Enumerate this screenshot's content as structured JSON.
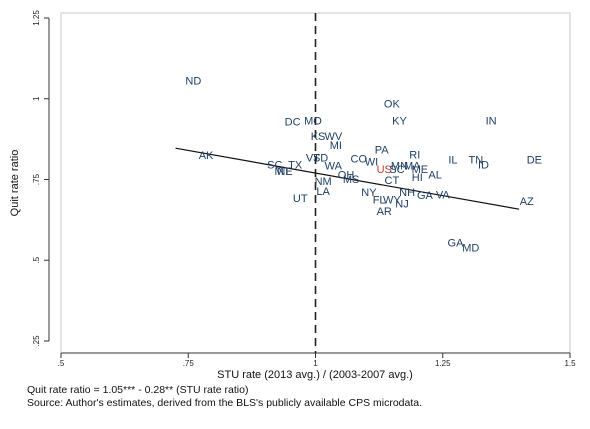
{
  "chart_data": {
    "type": "scatter",
    "xlabel": "STU rate (2013 avg.) / (2003-2007 avg.)",
    "ylabel": "Quit rate ratio",
    "xlim": [
      0.5,
      1.5
    ],
    "ylim": [
      0.25,
      1.25
    ],
    "xticks": [
      {
        "value": 0.5,
        "label": ".5"
      },
      {
        "value": 0.75,
        "label": ".75"
      },
      {
        "value": 1,
        "label": "1"
      },
      {
        "value": 1.25,
        "label": "1.25"
      },
      {
        "value": 1.5,
        "label": "1.5"
      }
    ],
    "yticks": [
      {
        "value": 0.25,
        "label": ".25"
      },
      {
        "value": 0.5,
        "label": ".5"
      },
      {
        "value": 0.75,
        "label": ".75"
      },
      {
        "value": 1,
        "label": "1"
      },
      {
        "value": 1.25,
        "label": "1.25"
      }
    ],
    "reference_line": {
      "x": 1,
      "style": "dashed"
    },
    "fit_line": {
      "intercept": 1.05,
      "slope": -0.28,
      "x_range": [
        0.725,
        1.4
      ]
    },
    "point_color": "#1f3f63",
    "highlight_color": "#c0392b",
    "points": [
      {
        "label": "ND",
        "x": 0.76,
        "y": 1.057
      },
      {
        "label": "OK",
        "x": 1.15,
        "y": 0.985
      },
      {
        "label": "IN",
        "x": 1.345,
        "y": 0.932
      },
      {
        "label": "KY",
        "x": 1.165,
        "y": 0.932
      },
      {
        "label": "DC",
        "x": 0.955,
        "y": 0.929
      },
      {
        "label": "MO",
        "x": 0.995,
        "y": 0.932
      },
      {
        "label": "KS",
        "x": 1.005,
        "y": 0.885
      },
      {
        "label": "WV",
        "x": 1.035,
        "y": 0.885
      },
      {
        "label": "MI",
        "x": 1.04,
        "y": 0.857
      },
      {
        "label": "PA",
        "x": 1.13,
        "y": 0.843
      },
      {
        "label": "AK",
        "x": 0.785,
        "y": 0.826
      },
      {
        "label": "RI",
        "x": 1.195,
        "y": 0.827
      },
      {
        "label": "VT",
        "x": 0.995,
        "y": 0.818
      },
      {
        "label": "SD",
        "x": 1.01,
        "y": 0.818
      },
      {
        "label": "CO",
        "x": 1.085,
        "y": 0.815
      },
      {
        "label": "IL",
        "x": 1.27,
        "y": 0.812
      },
      {
        "label": "TN",
        "x": 1.315,
        "y": 0.812
      },
      {
        "label": "DE",
        "x": 1.43,
        "y": 0.812
      },
      {
        "label": "WI",
        "x": 1.11,
        "y": 0.806
      },
      {
        "label": "ID",
        "x": 1.33,
        "y": 0.797
      },
      {
        "label": "SC",
        "x": 0.92,
        "y": 0.796
      },
      {
        "label": "TX",
        "x": 0.96,
        "y": 0.796
      },
      {
        "label": "WA",
        "x": 1.035,
        "y": 0.794
      },
      {
        "label": "MN",
        "x": 1.165,
        "y": 0.794
      },
      {
        "label": "MA",
        "x": 1.19,
        "y": 0.794
      },
      {
        "label": "US",
        "x": 1.135,
        "y": 0.782,
        "highlight": true
      },
      {
        "label": "SC",
        "x": 1.16,
        "y": 0.782
      },
      {
        "label": "ME",
        "x": 1.205,
        "y": 0.782
      },
      {
        "label": "NE",
        "x": 0.94,
        "y": 0.777
      },
      {
        "label": "MT",
        "x": 0.935,
        "y": 0.777
      },
      {
        "label": "OH",
        "x": 1.06,
        "y": 0.766
      },
      {
        "label": "AL",
        "x": 1.235,
        "y": 0.766
      },
      {
        "label": "HI",
        "x": 1.2,
        "y": 0.758
      },
      {
        "label": "MS",
        "x": 1.07,
        "y": 0.752
      },
      {
        "label": "CT",
        "x": 1.15,
        "y": 0.748
      },
      {
        "label": "NM",
        "x": 1.015,
        "y": 0.745
      },
      {
        "label": "LA",
        "x": 1.015,
        "y": 0.714
      },
      {
        "label": "UT",
        "x": 0.97,
        "y": 0.693
      },
      {
        "label": "NY",
        "x": 1.105,
        "y": 0.712
      },
      {
        "label": "NH",
        "x": 1.18,
        "y": 0.712
      },
      {
        "label": "GA",
        "x": 1.215,
        "y": 0.702
      },
      {
        "label": "VA",
        "x": 1.25,
        "y": 0.703
      },
      {
        "label": "AZ",
        "x": 1.415,
        "y": 0.684
      },
      {
        "label": "FL",
        "x": 1.125,
        "y": 0.688
      },
      {
        "label": "WY",
        "x": 1.15,
        "y": 0.688
      },
      {
        "label": "NJ",
        "x": 1.17,
        "y": 0.675
      },
      {
        "label": "AR",
        "x": 1.135,
        "y": 0.652
      },
      {
        "label": "GA",
        "x": 1.275,
        "y": 0.555
      },
      {
        "label": "MD",
        "x": 1.305,
        "y": 0.539
      }
    ]
  },
  "notes": {
    "equation": "Quit rate ratio = 1.05*** - 0.28** (STU rate ratio)",
    "source": "Source: Author's estimates, derived from the BLS's publicly available CPS microdata."
  }
}
